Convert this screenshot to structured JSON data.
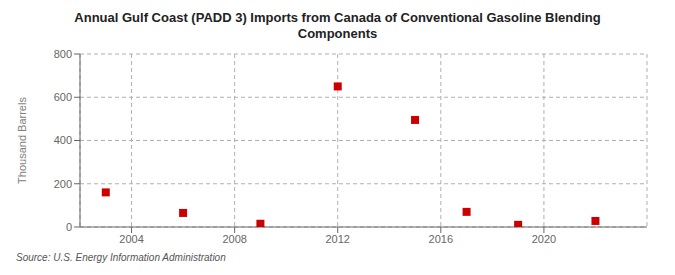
{
  "chart_data": {
    "type": "scatter",
    "title": "Annual Gulf Coast (PADD 3) Imports from Canada of Conventional Gasoline Blending\nComponents",
    "y_label": "Thousand Barrels",
    "annotations": [
      "Source: U.S. Energy Information Administration"
    ],
    "x": [
      2003,
      2006,
      2009,
      2012,
      2015,
      2017,
      2019,
      2022
    ],
    "values": [
      160,
      65,
      15,
      650,
      495,
      70,
      10,
      28
    ],
    "color": "#cc0000",
    "marker": "square",
    "xlim": [
      2002,
      2024
    ],
    "xticks": [
      2004,
      2008,
      2012,
      2016,
      2020
    ],
    "ylim": [
      0,
      800
    ],
    "yticks": [
      0,
      200,
      400,
      600,
      800
    ],
    "grid": true
  }
}
